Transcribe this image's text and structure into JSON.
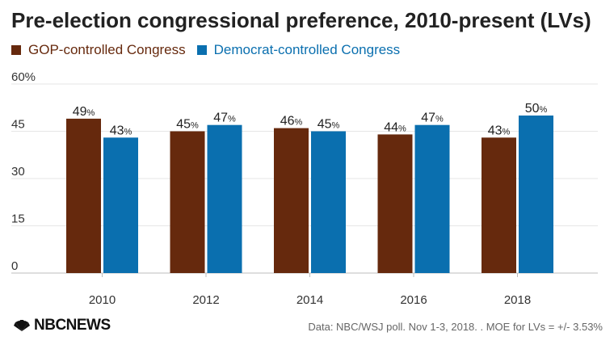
{
  "title": "Pre-election congressional preference, 2010-present (LVs)",
  "legend": {
    "gop_label": "GOP-controlled Congress",
    "dem_label": "Democrat-controlled Congress"
  },
  "colors": {
    "gop": "#66290d",
    "dem": "#0a6faf"
  },
  "logo": {
    "text": "NBCNEWS",
    "icon": "nbc-peacock-icon"
  },
  "source": "Data: NBC/WSJ poll. Nov 1-3, 2018. . MOE for LVs = +/- 3.53%",
  "chart_data": {
    "type": "bar",
    "title": "Pre-election congressional preference, 2010-present (LVs)",
    "categories": [
      "2010",
      "2012",
      "2014",
      "2016",
      "2018"
    ],
    "series": [
      {
        "name": "GOP-controlled Congress",
        "values": [
          49,
          45,
          46,
          44,
          43
        ]
      },
      {
        "name": "Democrat-controlled Congress",
        "values": [
          43,
          47,
          45,
          47,
          50
        ]
      }
    ],
    "value_suffix": "%",
    "ylim": [
      0,
      60
    ],
    "yticks": [
      "0",
      "15",
      "30",
      "45",
      "60%"
    ],
    "grid": true,
    "legend_position": "top-left"
  }
}
